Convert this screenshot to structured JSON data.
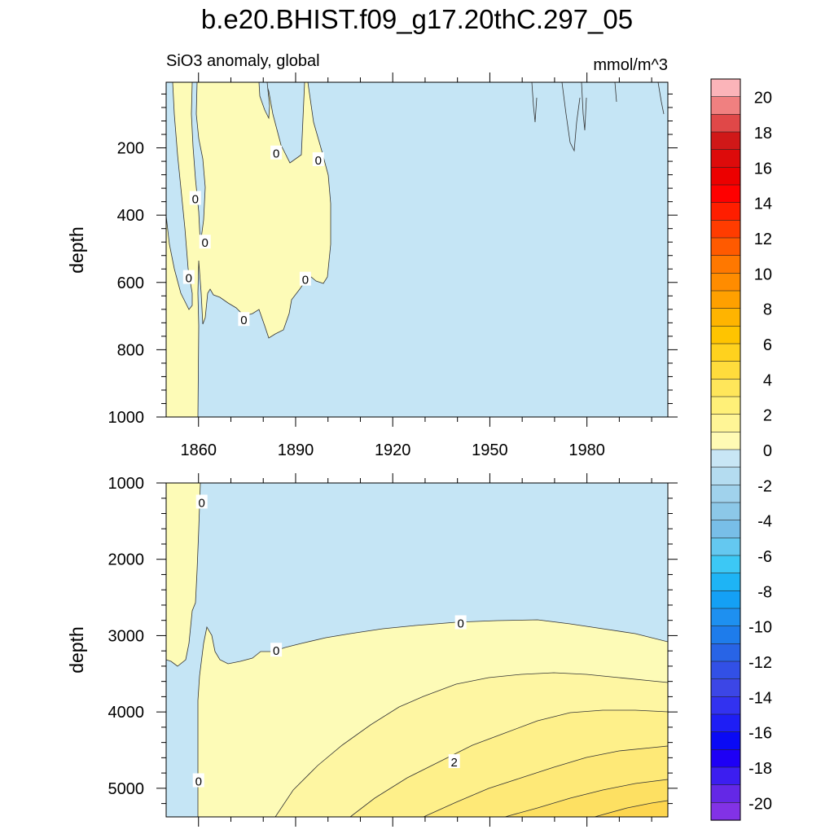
{
  "title": "b.e20.BHIST.f09_g17.20thC.297_05",
  "subtitle_left": "SiO3 anomaly, global",
  "units": "mmol/m^3",
  "colors": {
    "negative_near_zero": "#c5e5f5",
    "positive_levels": [
      "#fdfbb7",
      "#fef6a2",
      "#fef08a",
      "#fee977",
      "#fde062",
      "#fdd64f"
    ]
  },
  "chart_data": [
    {
      "type": "heatmap",
      "panel": "upper",
      "ylabel": "depth",
      "x_ticks": [
        1860,
        1890,
        1920,
        1950,
        1980
      ],
      "x_tick_labels": [
        "1860",
        "1890",
        "1920",
        "1950",
        "1980"
      ],
      "xlim": [
        1850,
        2005
      ],
      "y_ticks": [
        200,
        400,
        600,
        800,
        1000
      ],
      "y_tick_labels": [
        "200",
        "400",
        "600",
        "800",
        "1000"
      ],
      "ylim": [
        5,
        1000
      ],
      "y_inverted": true,
      "contour_labels": [
        {
          "x": 1884,
          "y": 215,
          "text": "0"
        },
        {
          "x": 1897,
          "y": 235,
          "text": "0"
        },
        {
          "x": 1859,
          "y": 350,
          "text": "0"
        },
        {
          "x": 1862,
          "y": 480,
          "text": "0"
        },
        {
          "x": 1857,
          "y": 585,
          "text": "0"
        },
        {
          "x": 1893,
          "y": 590,
          "text": "0"
        },
        {
          "x": 1874,
          "y": 710,
          "text": "0"
        }
      ],
      "regions": [
        {
          "value_range": [
            0,
            1
          ],
          "description": "positive anomaly"
        },
        {
          "value_range": [
            -1,
            0
          ],
          "description": "negative anomaly"
        }
      ]
    },
    {
      "type": "heatmap",
      "panel": "lower",
      "ylabel": "depth",
      "xlim": [
        1850,
        2005
      ],
      "y_ticks": [
        1000,
        2000,
        3000,
        4000,
        5000
      ],
      "y_tick_labels": [
        "1000",
        "2000",
        "3000",
        "4000",
        "5000"
      ],
      "ylim": [
        1000,
        5375
      ],
      "y_inverted": true,
      "contour_labels": [
        {
          "x": 1861,
          "y": 1250,
          "text": "0"
        },
        {
          "x": 1884,
          "y": 3190,
          "text": "0"
        },
        {
          "x": 1941,
          "y": 2830,
          "text": "0"
        },
        {
          "x": 1939,
          "y": 4650,
          "text": "2"
        },
        {
          "x": 1860,
          "y": 4900,
          "text": "0"
        }
      ]
    }
  ],
  "colorbar": {
    "labels": [
      "20",
      "18",
      "16",
      "14",
      "12",
      "10",
      "8",
      "6",
      "4",
      "2",
      "0",
      "-2",
      "-4",
      "-6",
      "-8",
      "-10",
      "-12",
      "-14",
      "-16",
      "-18",
      "-20"
    ],
    "colors": [
      "#fbb4b9",
      "#f08080",
      "#e04848",
      "#d01818",
      "#dd0b0b",
      "#ec0000",
      "#ff0000",
      "#ff1e00",
      "#ff3c00",
      "#ff5a00",
      "#ff7800",
      "#ff8c00",
      "#ffa000",
      "#ffb400",
      "#ffc400",
      "#ffd21e",
      "#ffdc3c",
      "#ffe65a",
      "#fff078",
      "#fff596",
      "#fffab4",
      "#c8e6f5",
      "#b4dcf0",
      "#a0d2ec",
      "#8cc8e8",
      "#78bee8",
      "#64c8f0",
      "#3cc8f5",
      "#1eb4f5",
      "#14a0f5",
      "#1e90f0",
      "#1e7ceb",
      "#2864e6",
      "#3250e6",
      "#3c46e6",
      "#3232f0",
      "#1e1ef5",
      "#0a0af5",
      "#1e00f5",
      "#3c1ef0",
      "#6428e6",
      "#8232e6"
    ]
  }
}
